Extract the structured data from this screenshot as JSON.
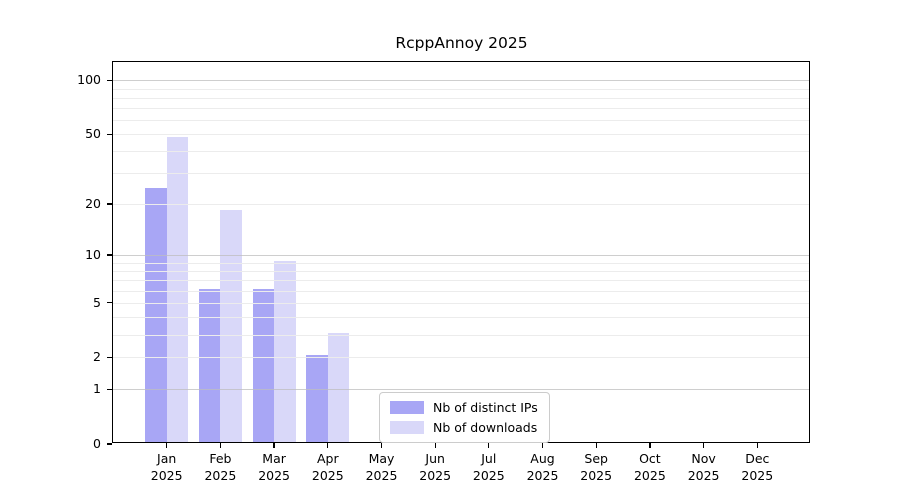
{
  "title": "RcppAnnoy 2025",
  "chart_data": {
    "type": "bar",
    "title": "RcppAnnoy 2025",
    "scale": "log1p",
    "categories": [
      "Jan",
      "Feb",
      "Mar",
      "Apr",
      "May",
      "Jun",
      "Jul",
      "Aug",
      "Sep",
      "Oct",
      "Nov",
      "Dec"
    ],
    "category_year": "2025",
    "series": [
      {
        "name": "Nb of distinct IPs",
        "color": "#a8a6f5",
        "values": [
          24,
          6,
          6,
          2,
          0,
          0,
          0,
          0,
          0,
          0,
          0,
          0
        ]
      },
      {
        "name": "Nb of downloads",
        "color": "#d9d8f9",
        "values": [
          47,
          18,
          9,
          3,
          0,
          0,
          0,
          0,
          0,
          0,
          0,
          0
        ]
      }
    ],
    "yticks": [
      {
        "label": "0",
        "value": 0
      },
      {
        "label": "1",
        "value": 1
      },
      {
        "label": "2",
        "value": 2
      },
      {
        "label": "5",
        "value": 5
      },
      {
        "label": "10",
        "value": 10
      },
      {
        "label": "20",
        "value": 20
      },
      {
        "label": "50",
        "value": 50
      },
      {
        "label": "100",
        "value": 100
      }
    ],
    "major_gridlines": [
      1,
      10,
      100
    ],
    "minor_gridlines": [
      2,
      3,
      4,
      5,
      6,
      7,
      8,
      9,
      20,
      30,
      40,
      50,
      60,
      70,
      80,
      90
    ],
    "ylim": [
      0,
      126
    ],
    "grid": true,
    "legend_position": "lower center-left",
    "colors": {
      "spine": "#000000",
      "grid_major": "#bdbdbd",
      "grid_minor": "#ececec",
      "text": "#000000",
      "background": "#ffffff"
    }
  }
}
